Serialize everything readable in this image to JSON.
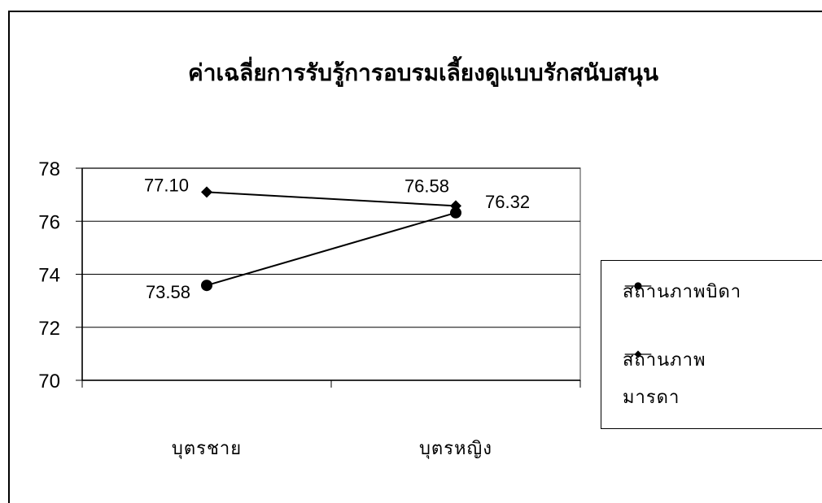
{
  "chart_data": {
    "type": "line",
    "title": "ค่าเฉลี่ยการรับรู้การอบรมเลี้ยงดูแบบรักสนับสนุน",
    "categories": [
      "บุตรชาย",
      "บุตรหญิง"
    ],
    "series": [
      {
        "name": "สถานภาพบิดา",
        "values": [
          73.58,
          76.32
        ],
        "labels": [
          "73.58",
          "76.32"
        ],
        "marker": "circle"
      },
      {
        "name": "สถานภาพมารดา",
        "name_lines": [
          "สถานภาพ",
          "มารดา"
        ],
        "values": [
          77.1,
          76.58
        ],
        "labels": [
          "77.10",
          "76.58"
        ],
        "marker": "diamond"
      }
    ],
    "ylim": [
      70,
      78
    ],
    "yticks": [
      "70",
      "72",
      "74",
      "76",
      "78"
    ],
    "grid": true,
    "legend_position": "right",
    "xlabel": "",
    "ylabel": ""
  }
}
